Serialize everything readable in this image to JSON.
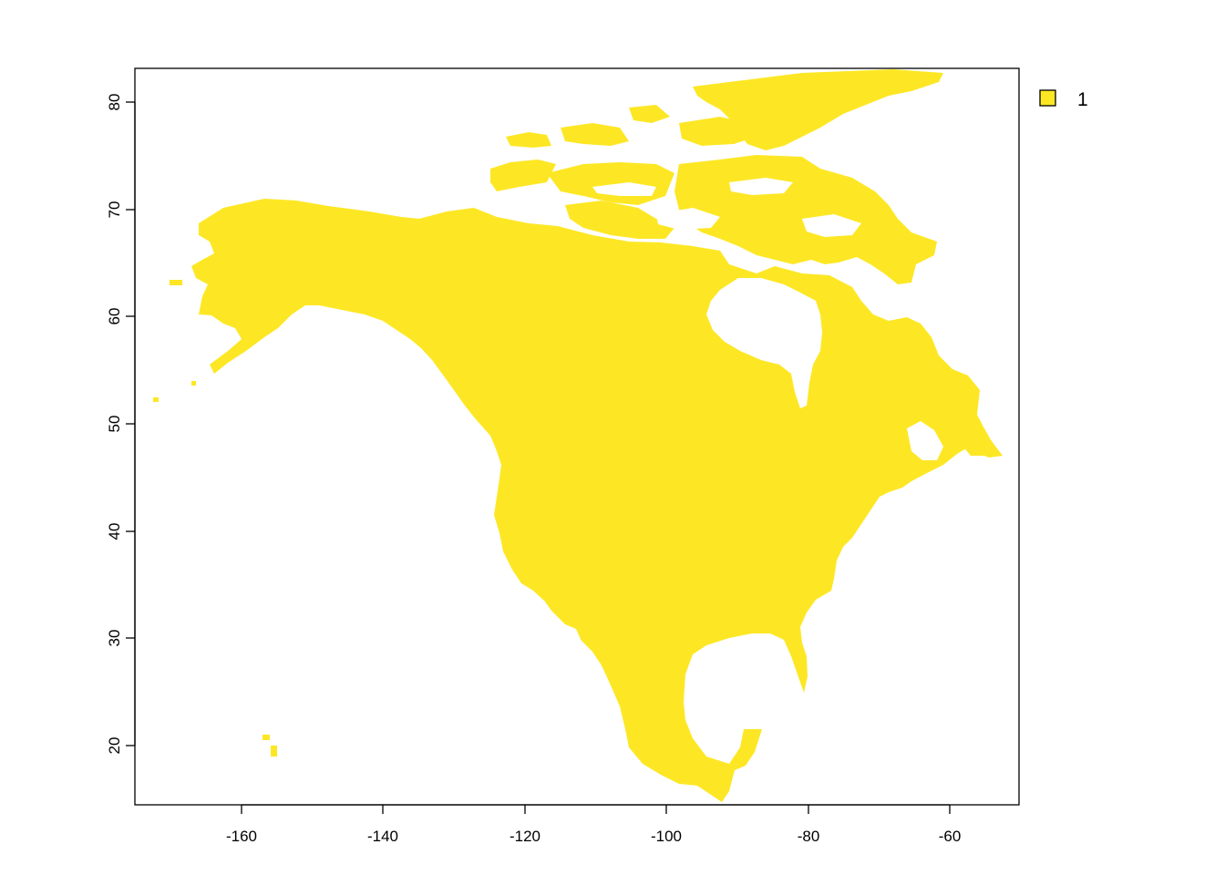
{
  "map": {
    "x_ticks": [
      "-160",
      "-140",
      "-120",
      "-100",
      "-80",
      "-60"
    ],
    "y_ticks": [
      "20",
      "30",
      "40",
      "50",
      "60",
      "70",
      "80"
    ],
    "fill_color": "#FDE725",
    "frame_color": "#000000",
    "background_color": "#FFFFFF",
    "legend": {
      "swatch_color": "#FDE725",
      "label": "1",
      "position": "right"
    }
  },
  "chart_data": {
    "type": "heatmap",
    "title": "",
    "xlabel": "",
    "ylabel": "",
    "xlim": [
      -175,
      -51
    ],
    "ylim": [
      14.5,
      83.2
    ],
    "x_ticks": [
      -160,
      -140,
      -120,
      -100,
      -80,
      -60
    ],
    "y_ticks": [
      20,
      30,
      40,
      50,
      60,
      70,
      80
    ],
    "values": [
      1
    ],
    "colors": [
      "#FDE725"
    ],
    "legend": [
      "1"
    ],
    "region": "North America land raster",
    "grid": false
  }
}
